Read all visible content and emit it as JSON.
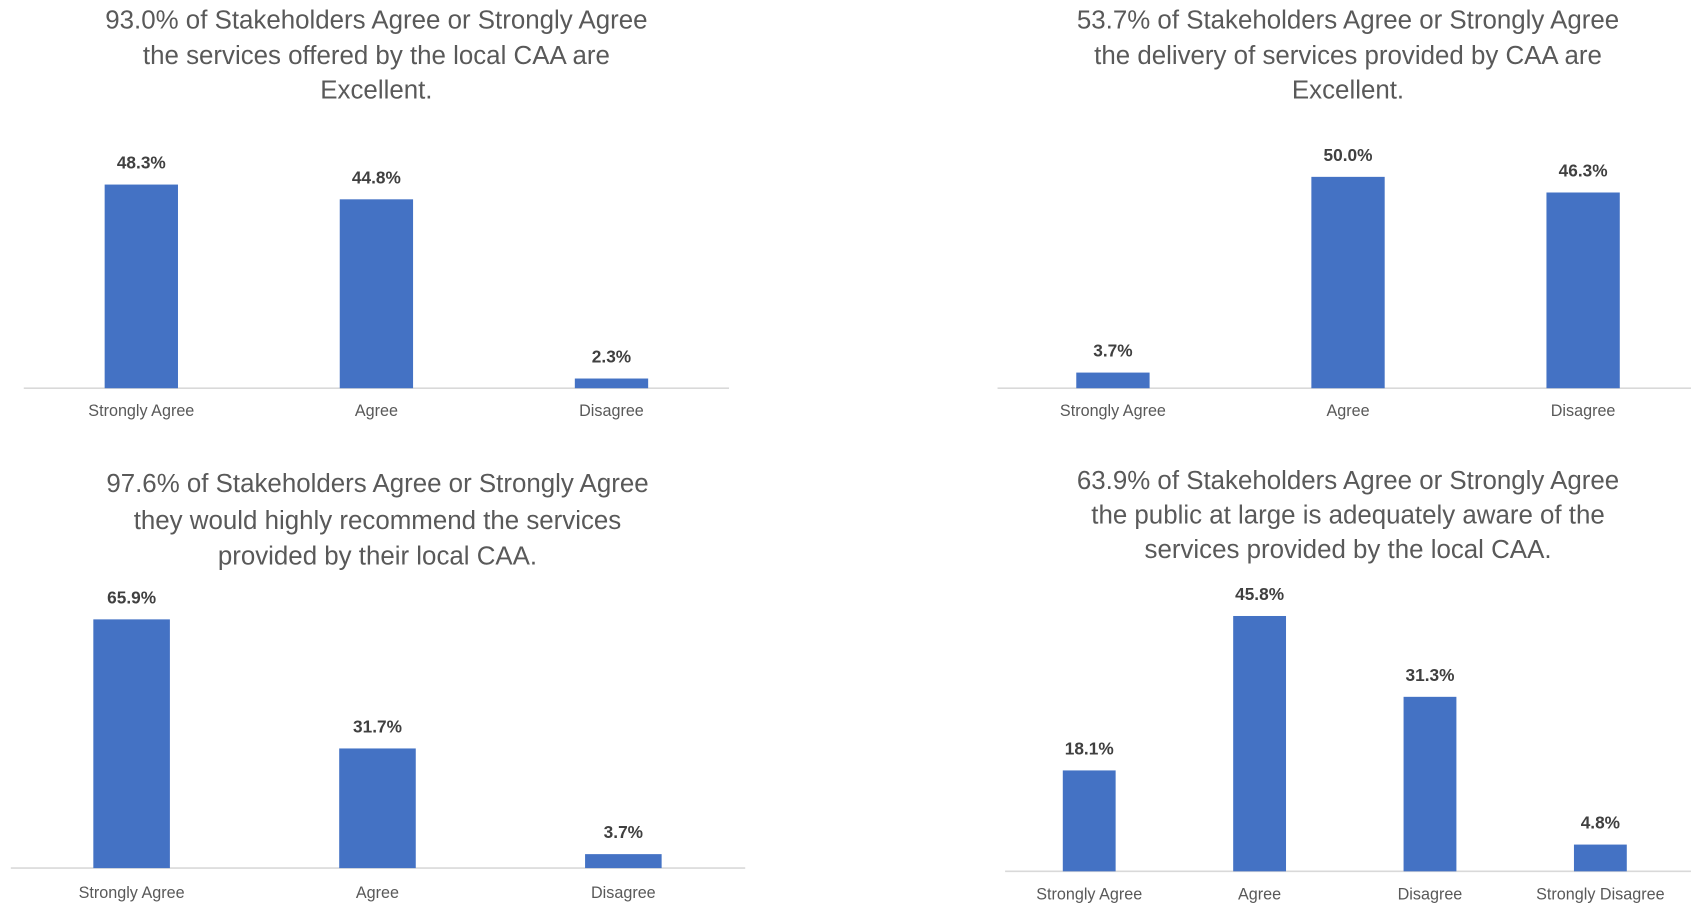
{
  "chart_data": [
    {
      "type": "bar",
      "title": [
        "93.0% of Stakeholders Agree or Strongly Agree",
        "the services offered by the local CAA are",
        "Excellent."
      ],
      "categories": [
        "Strongly Agree",
        "Agree",
        "Disagree"
      ],
      "values": [
        48.3,
        44.8,
        2.3
      ],
      "value_labels": [
        "48.3%",
        "44.8%",
        "2.3%"
      ],
      "color": "#4472c4"
    },
    {
      "type": "bar",
      "title": [
        "53.7% of Stakeholders Agree or Strongly Agree",
        "the delivery of services provided by CAA are",
        "Excellent."
      ],
      "categories": [
        "Strongly Agree",
        "Agree",
        "Disagree"
      ],
      "values": [
        3.7,
        50.0,
        46.3
      ],
      "value_labels": [
        "3.7%",
        "50.0%",
        "46.3%"
      ],
      "color": "#4472c4"
    },
    {
      "type": "bar",
      "title": [
        "97.6% of Stakeholders Agree or Strongly Agree",
        "they would highly recommend the services",
        "provided by their local CAA."
      ],
      "categories": [
        "Strongly Agree",
        "Agree",
        "Disagree"
      ],
      "values": [
        65.9,
        31.7,
        3.7
      ],
      "value_labels": [
        "65.9%",
        "31.7%",
        "3.7%"
      ],
      "color": "#4472c4"
    },
    {
      "type": "bar",
      "title": [
        "63.9% of Stakeholders Agree or Strongly Agree",
        "the public at large is adequately aware of the",
        "services provided by the local CAA."
      ],
      "categories": [
        "Strongly Agree",
        "Agree",
        "Disagree",
        "Strongly Disagree"
      ],
      "values": [
        18.1,
        45.8,
        31.3,
        4.8
      ],
      "value_labels": [
        "18.1%",
        "45.8%",
        "31.3%",
        "4.8%"
      ],
      "color": "#4472c4"
    }
  ]
}
